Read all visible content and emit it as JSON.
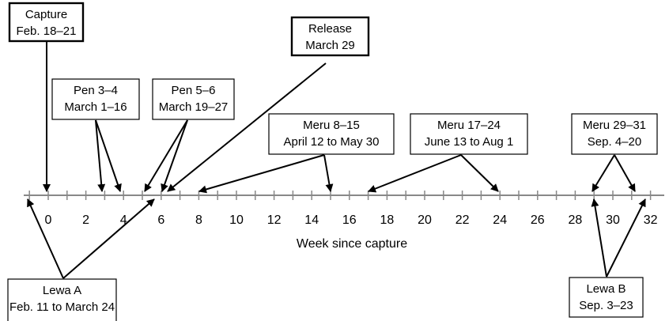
{
  "axis": {
    "label": "Week since capture",
    "ticks": [
      0,
      2,
      4,
      6,
      8,
      10,
      12,
      14,
      16,
      18,
      20,
      22,
      24,
      26,
      28,
      30,
      32
    ]
  },
  "boxes": [
    {
      "lines": [
        "Capture",
        "Feb. 18–21"
      ]
    },
    {
      "lines": [
        "Pen 3–4",
        "March 1–16"
      ]
    },
    {
      "lines": [
        "Pen 5–6",
        "March 19–27"
      ]
    },
    {
      "lines": [
        "Release",
        "March 29"
      ]
    },
    {
      "lines": [
        "Meru 8–15",
        "April 12 to May 30"
      ]
    },
    {
      "lines": [
        "Meru 17–24",
        "June 13 to Aug 1"
      ]
    },
    {
      "lines": [
        "Meru 29–31",
        "Sep. 4–20"
      ]
    },
    {
      "lines": [
        "Lewa A",
        "Feb. 11 to March 24"
      ]
    },
    {
      "lines": [
        "Lewa B",
        "Sep. 3–23"
      ]
    }
  ]
}
